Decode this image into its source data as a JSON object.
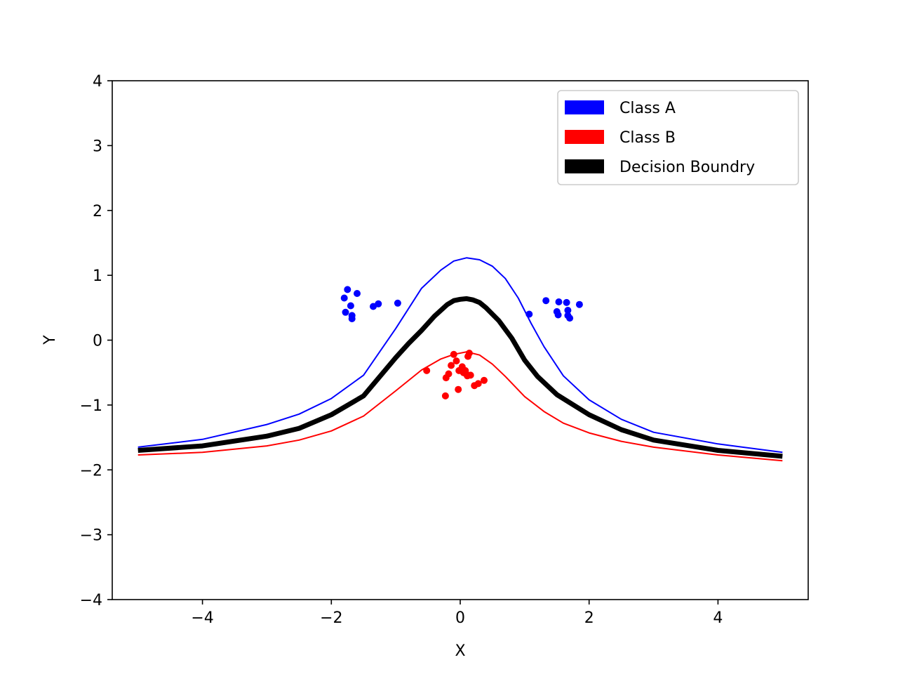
{
  "chart_data": {
    "type": "scatter",
    "title": "",
    "xlabel": "X",
    "ylabel": "Y",
    "xlim": [
      -5.4,
      5.4
    ],
    "ylim": [
      -4,
      4
    ],
    "x_ticks": [
      -4,
      -2,
      0,
      2,
      4
    ],
    "y_ticks": [
      -4,
      -3,
      -2,
      -1,
      0,
      1,
      2,
      3,
      4
    ],
    "grid": false,
    "legend_position": "top-right",
    "curves": [
      {
        "name": "Decision Boundry",
        "color": "#000000",
        "width": "thick",
        "x": [
          -5.0,
          -4.0,
          -3.0,
          -2.5,
          -2.0,
          -1.5,
          -1.0,
          -0.8,
          -0.6,
          -0.4,
          -0.2,
          -0.1,
          0.0,
          0.1,
          0.2,
          0.3,
          0.4,
          0.6,
          0.8,
          1.0,
          1.2,
          1.5,
          2.0,
          2.5,
          3.0,
          4.0,
          5.0
        ],
        "y": [
          -1.7,
          -1.63,
          -1.48,
          -1.36,
          -1.15,
          -0.86,
          -0.27,
          -0.05,
          0.15,
          0.37,
          0.55,
          0.61,
          0.63,
          0.64,
          0.62,
          0.58,
          0.5,
          0.3,
          0.03,
          -0.31,
          -0.56,
          -0.84,
          -1.15,
          -1.38,
          -1.54,
          -1.7,
          -1.79
        ]
      },
      {
        "name": "Class A boundary",
        "color": "#0000ff",
        "width": "thin",
        "x": [
          -5.0,
          -4.0,
          -3.0,
          -2.5,
          -2.0,
          -1.5,
          -1.0,
          -0.6,
          -0.3,
          -0.1,
          0.1,
          0.3,
          0.5,
          0.7,
          0.9,
          1.1,
          1.3,
          1.6,
          2.0,
          2.5,
          3.0,
          4.0,
          5.0
        ],
        "y": [
          -1.65,
          -1.53,
          -1.3,
          -1.14,
          -0.9,
          -0.54,
          0.18,
          0.8,
          1.08,
          1.22,
          1.27,
          1.24,
          1.14,
          0.95,
          0.65,
          0.26,
          -0.1,
          -0.55,
          -0.92,
          -1.22,
          -1.42,
          -1.6,
          -1.73
        ]
      },
      {
        "name": "Class B boundary",
        "color": "#ff0000",
        "width": "thin",
        "x": [
          -5.0,
          -4.0,
          -3.0,
          -2.5,
          -2.0,
          -1.5,
          -1.0,
          -0.6,
          -0.3,
          -0.1,
          0.1,
          0.3,
          0.5,
          0.7,
          1.0,
          1.3,
          1.6,
          2.0,
          2.5,
          3.0,
          4.0,
          5.0
        ],
        "y": [
          -1.77,
          -1.73,
          -1.63,
          -1.54,
          -1.4,
          -1.17,
          -0.78,
          -0.46,
          -0.29,
          -0.22,
          -0.18,
          -0.23,
          -0.37,
          -0.56,
          -0.87,
          -1.1,
          -1.28,
          -1.43,
          -1.56,
          -1.65,
          -1.77,
          -1.86
        ]
      }
    ],
    "series": [
      {
        "name": "Class A",
        "color": "#0000ff",
        "points": [
          [
            -1.75,
            0.78
          ],
          [
            -1.6,
            0.72
          ],
          [
            -1.8,
            0.65
          ],
          [
            -1.7,
            0.53
          ],
          [
            -1.35,
            0.52
          ],
          [
            -1.27,
            0.56
          ],
          [
            -0.97,
            0.57
          ],
          [
            -1.78,
            0.43
          ],
          [
            -1.68,
            0.38
          ],
          [
            -1.68,
            0.33
          ],
          [
            1.07,
            0.4
          ],
          [
            1.33,
            0.61
          ],
          [
            1.53,
            0.59
          ],
          [
            1.65,
            0.58
          ],
          [
            1.85,
            0.55
          ],
          [
            1.5,
            0.44
          ],
          [
            1.52,
            0.39
          ],
          [
            1.67,
            0.46
          ],
          [
            1.67,
            0.38
          ],
          [
            1.7,
            0.34
          ]
        ]
      },
      {
        "name": "Class B",
        "color": "#ff0000",
        "points": [
          [
            -0.52,
            -0.47
          ],
          [
            -0.22,
            -0.58
          ],
          [
            -0.18,
            -0.52
          ],
          [
            -0.14,
            -0.39
          ],
          [
            -0.1,
            -0.22
          ],
          [
            -0.06,
            -0.32
          ],
          [
            -0.02,
            -0.47
          ],
          [
            0.03,
            -0.41
          ],
          [
            0.08,
            -0.47
          ],
          [
            0.09,
            -0.52
          ],
          [
            0.11,
            -0.55
          ],
          [
            0.14,
            -0.2
          ],
          [
            0.12,
            -0.25
          ],
          [
            0.16,
            -0.54
          ],
          [
            0.22,
            -0.7
          ],
          [
            0.28,
            -0.67
          ],
          [
            0.37,
            -0.62
          ],
          [
            -0.03,
            -0.76
          ],
          [
            -0.23,
            -0.86
          ],
          [
            0.05,
            -0.5
          ]
        ]
      }
    ],
    "legend": [
      {
        "label": "Class A",
        "color": "#0000ff"
      },
      {
        "label": "Class B",
        "color": "#ff0000"
      },
      {
        "label": "Decision Boundry",
        "color": "#000000"
      }
    ]
  }
}
